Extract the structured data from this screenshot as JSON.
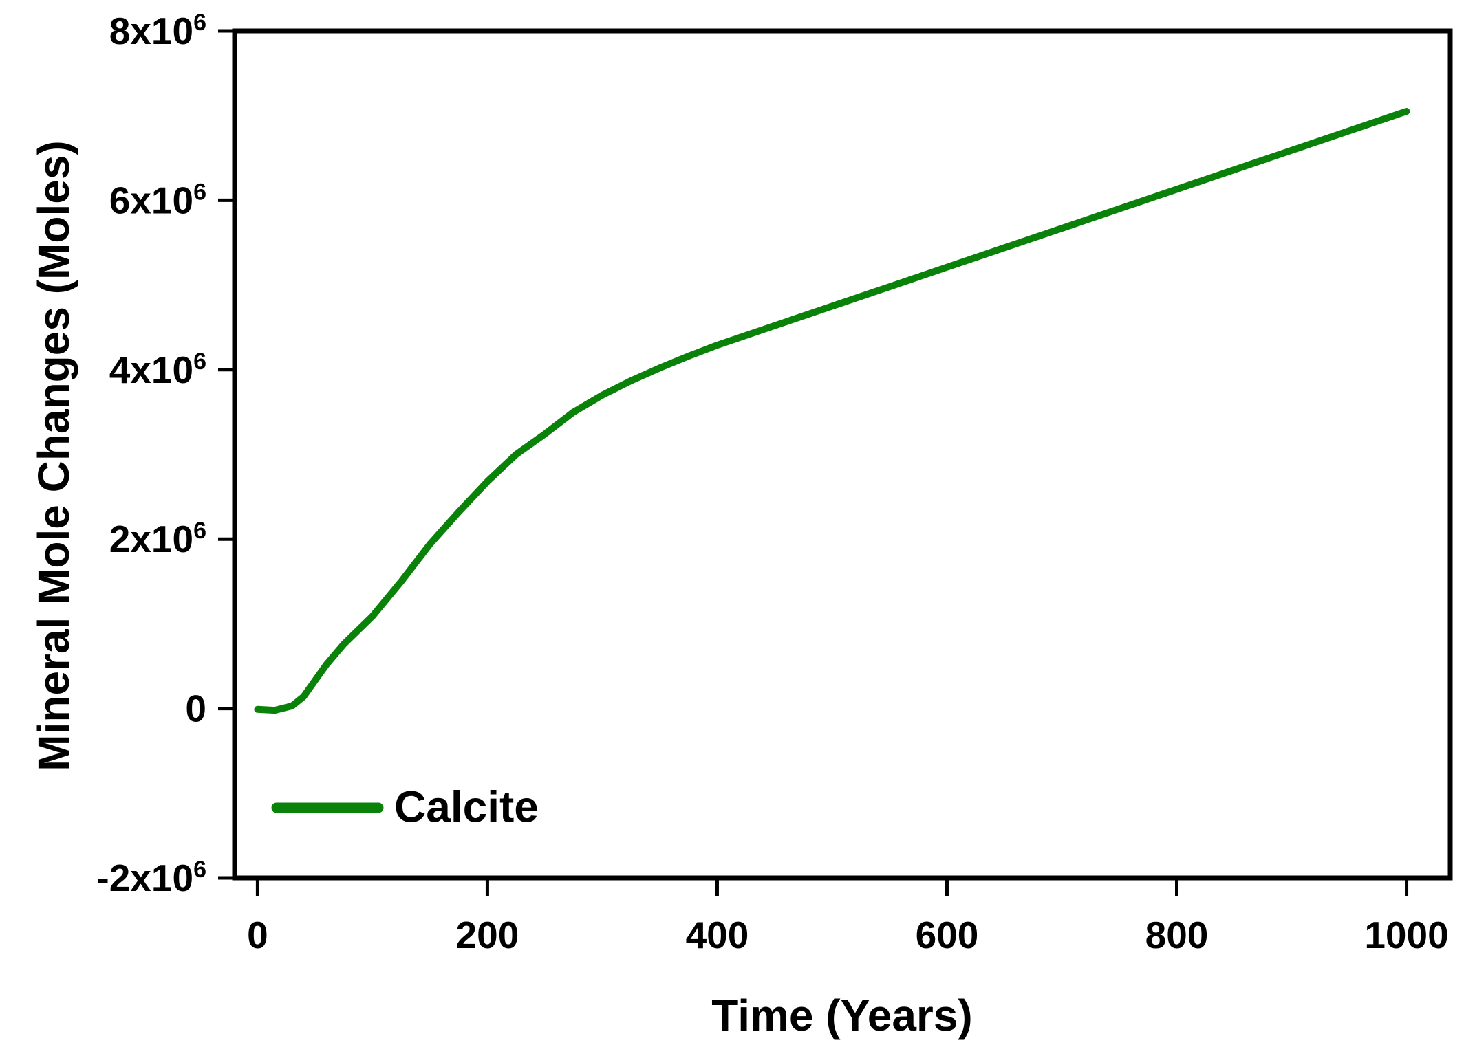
{
  "chart_data": {
    "type": "line",
    "title": "",
    "xlabel": "Time (Years)",
    "ylabel": "Mineral Mole Changes (Moles)",
    "xlim": [
      -20,
      1038
    ],
    "ylim": [
      -2000000,
      8000000
    ],
    "grid": false,
    "legend_position": "inside-bottom-left",
    "axis_color": "#000000",
    "tick_direction": "out",
    "x_ticks": [
      {
        "value": 0,
        "label": "0"
      },
      {
        "value": 200,
        "label": "200"
      },
      {
        "value": 400,
        "label": "400"
      },
      {
        "value": 600,
        "label": "600"
      },
      {
        "value": 800,
        "label": "800"
      },
      {
        "value": 1000,
        "label": "1000"
      }
    ],
    "y_ticks": [
      {
        "value": -2000000,
        "label": "-2x10^6"
      },
      {
        "value": 0,
        "label": "0"
      },
      {
        "value": 2000000,
        "label": "2x10^6"
      },
      {
        "value": 4000000,
        "label": "4x10^6"
      },
      {
        "value": 6000000,
        "label": "6x10^6"
      },
      {
        "value": 8000000,
        "label": "8x10^6"
      }
    ],
    "series": [
      {
        "name": "Calcite",
        "color": "#0a820a",
        "points": [
          [
            0,
            -10000
          ],
          [
            15,
            -20000
          ],
          [
            30,
            30000
          ],
          [
            40,
            140000
          ],
          [
            50,
            330000
          ],
          [
            60,
            520000
          ],
          [
            75,
            760000
          ],
          [
            100,
            1090000
          ],
          [
            125,
            1500000
          ],
          [
            150,
            1940000
          ],
          [
            175,
            2320000
          ],
          [
            200,
            2680000
          ],
          [
            225,
            3000000
          ],
          [
            250,
            3240000
          ],
          [
            275,
            3500000
          ],
          [
            300,
            3700000
          ],
          [
            325,
            3870000
          ],
          [
            350,
            4020000
          ],
          [
            375,
            4160000
          ],
          [
            400,
            4290000
          ],
          [
            450,
            4520000
          ],
          [
            500,
            4750000
          ],
          [
            550,
            4980000
          ],
          [
            600,
            5210000
          ],
          [
            650,
            5440000
          ],
          [
            700,
            5670000
          ],
          [
            750,
            5900000
          ],
          [
            800,
            6130000
          ],
          [
            850,
            6360000
          ],
          [
            900,
            6590000
          ],
          [
            950,
            6820000
          ],
          [
            1000,
            7050000
          ]
        ]
      }
    ]
  }
}
